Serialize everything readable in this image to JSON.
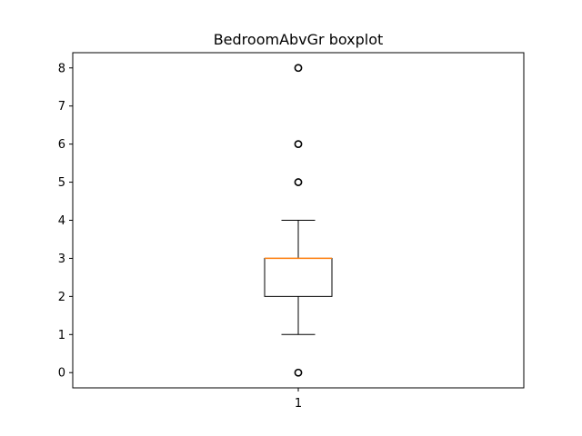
{
  "chart_data": {
    "type": "boxplot",
    "title": "BedroomAbvGr boxplot",
    "xlabel": "",
    "ylabel": "",
    "categories": [
      "1"
    ],
    "ylim": [
      -0.4,
      8.4
    ],
    "yticks": [
      0,
      1,
      2,
      3,
      4,
      5,
      6,
      7,
      8
    ],
    "ytick_labels": [
      "0",
      "1",
      "2",
      "3",
      "4",
      "5",
      "6",
      "7",
      "8"
    ],
    "boxes": [
      {
        "category": "1",
        "whisker_low": 1,
        "q1": 2,
        "median": 3,
        "q3": 3,
        "whisker_high": 4,
        "outliers": [
          0,
          5,
          6,
          8
        ]
      }
    ],
    "grid": false,
    "colors": {
      "median": "#ff7f0e",
      "box": "#000000",
      "outlier": "#000000"
    }
  }
}
